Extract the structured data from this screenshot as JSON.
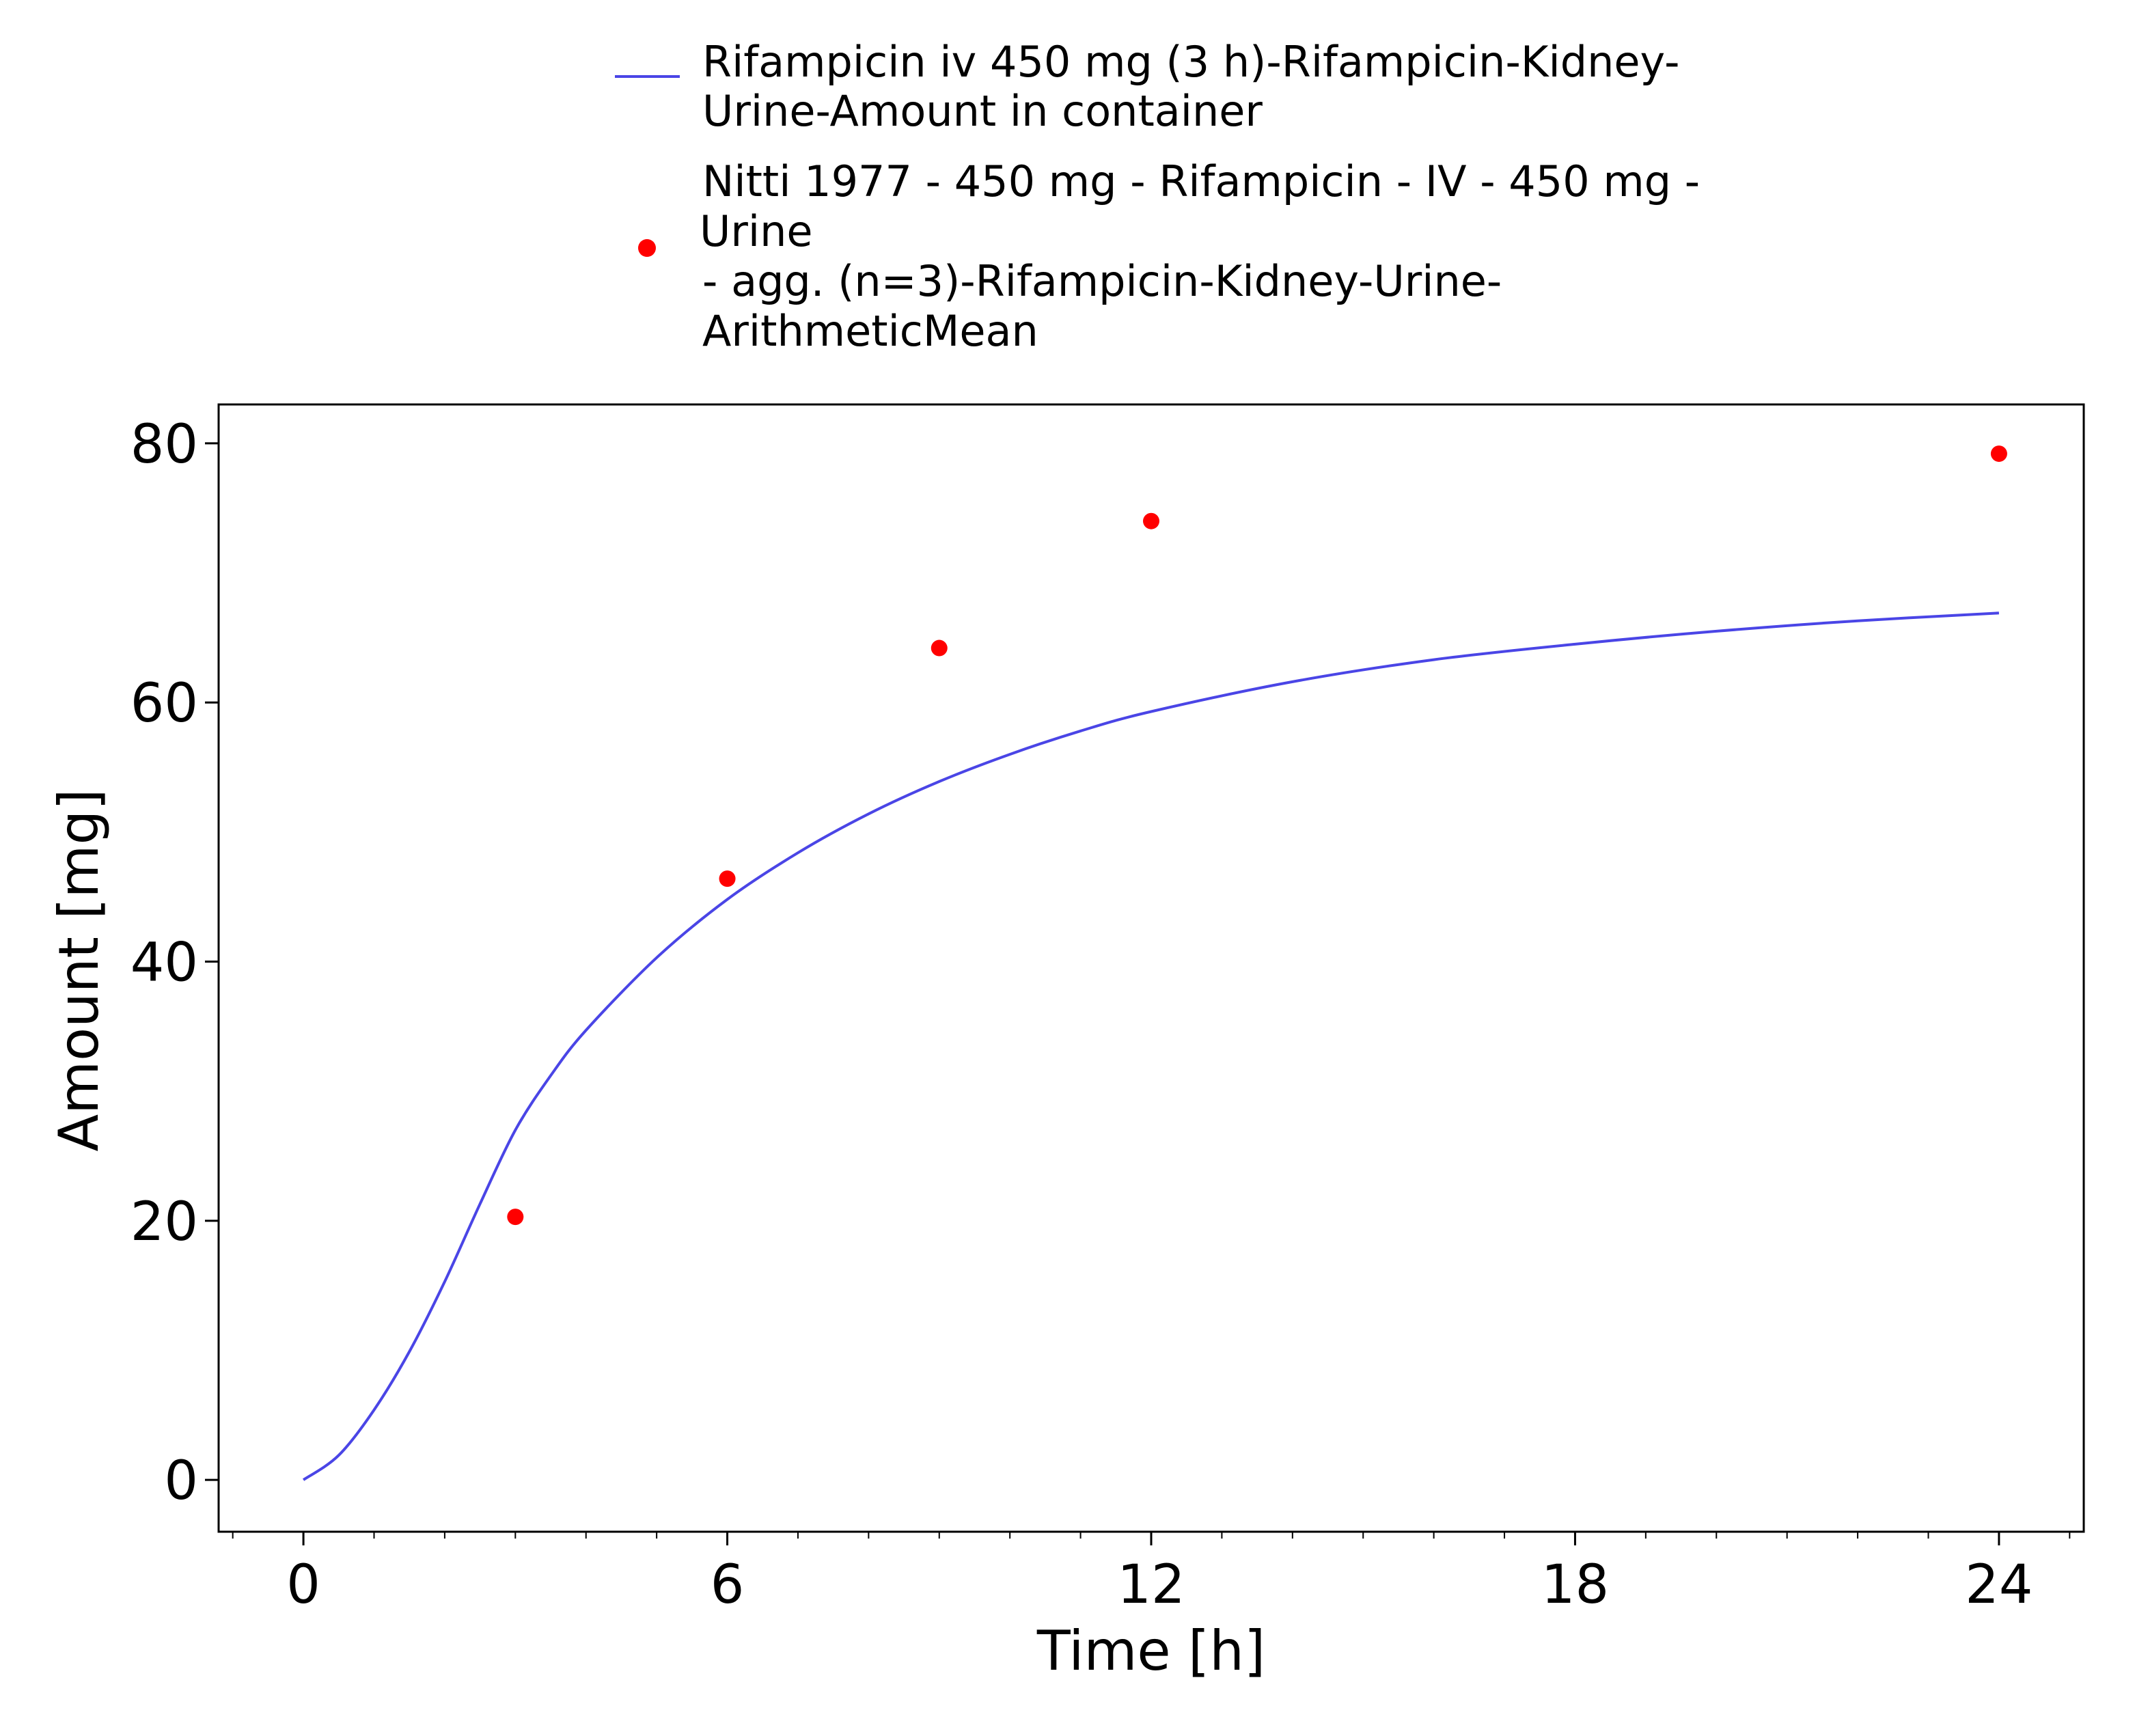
{
  "chart_data": {
    "type": "line",
    "title": "",
    "xlabel": "Time [h]",
    "ylabel": "Amount [mg]",
    "xlim": [
      -1.2,
      25.2
    ],
    "ylim": [
      -4,
      83
    ],
    "xticks": [
      0,
      6,
      12,
      18,
      24
    ],
    "xtick_labels": [
      "0",
      "6",
      "12",
      "18",
      "24"
    ],
    "yticks": [
      0,
      20,
      40,
      60,
      80
    ],
    "ytick_labels": [
      "0",
      "20",
      "40",
      "60",
      "80"
    ],
    "x_minor_step": 1,
    "grid": false,
    "legend_position": "top",
    "series": [
      {
        "name": "Rifampicin iv 450 mg (3 h)-Rifampicin-Kidney-Urine-Amount in container",
        "legend_lines": [
          "Rifampicin iv 450 mg (3 h)-Rifampicin-Kidney-",
          "Urine-Amount in container"
        ],
        "kind": "line",
        "color": "#4a45e6",
        "x": [
          0,
          0.5,
          1,
          1.5,
          2,
          2.5,
          3,
          3.5,
          4,
          5,
          6,
          7,
          8,
          9,
          10,
          11,
          12,
          14,
          16,
          18,
          20,
          22,
          24
        ],
        "y": [
          0,
          1.9,
          5.4,
          9.9,
          15.3,
          21.3,
          27.0,
          31.2,
          34.7,
          40.3,
          44.8,
          48.4,
          51.4,
          53.9,
          56.0,
          57.8,
          59.3,
          61.6,
          63.3,
          64.5,
          65.5,
          66.3,
          66.9
        ]
      },
      {
        "name": "Nitti 1977 - 450 mg - Rifampicin - IV - 450 mg - Urine - agg. (n=3)-Rifampicin-Kidney-Urine-ArithmeticMean",
        "legend_lines": [
          "Nitti 1977 - 450 mg - Rifampicin - IV - 450 mg -",
          "Urine",
          "- agg. (n=3)-Rifampicin-Kidney-Urine-",
          "ArithmeticMean"
        ],
        "kind": "scatter",
        "color": "#ff0000",
        "x": [
          3,
          6,
          9,
          12,
          24
        ],
        "y": [
          20.3,
          46.4,
          64.2,
          74.0,
          79.2
        ]
      }
    ]
  }
}
